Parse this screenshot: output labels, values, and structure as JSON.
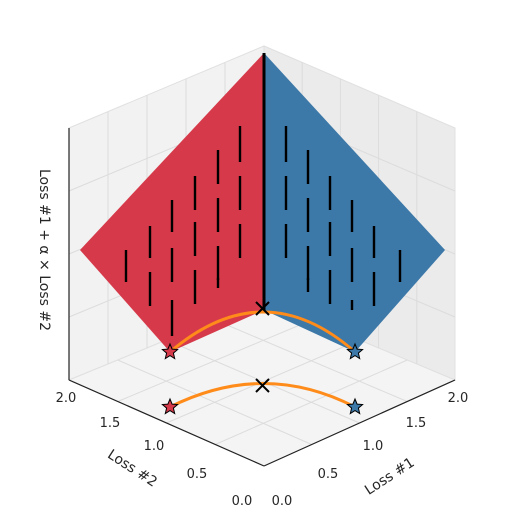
{
  "chart_data": {
    "type": "surface3d",
    "title": "",
    "xlabel": "Loss #1",
    "ylabel": "Loss #2",
    "zlabel": "Loss #1 + α × Loss #2",
    "xlim": [
      0,
      2.0
    ],
    "ylim": [
      0,
      2.0
    ],
    "x_ticks": [
      "0.0",
      "0.5",
      "1.0",
      "1.5",
      "2.0"
    ],
    "y_ticks": [
      "0.0",
      "0.5",
      "1.0",
      "1.5",
      "2.0"
    ],
    "grid": true,
    "surfaces": [
      {
        "side": "Loss #2",
        "color": "#d63a4a",
        "star_floor": [
          0.0,
          1.0
        ],
        "star_front": [
          0.0,
          1.0
        ]
      },
      {
        "side": "Loss #1",
        "color": "#3c78a8",
        "star_floor": [
          1.0,
          0.0
        ],
        "star_front": [
          1.0,
          0.0
        ]
      }
    ],
    "pareto_front_color": "#ff8c1a",
    "optimum_marker": "x",
    "projected_gradients": "black vertical strokes"
  }
}
